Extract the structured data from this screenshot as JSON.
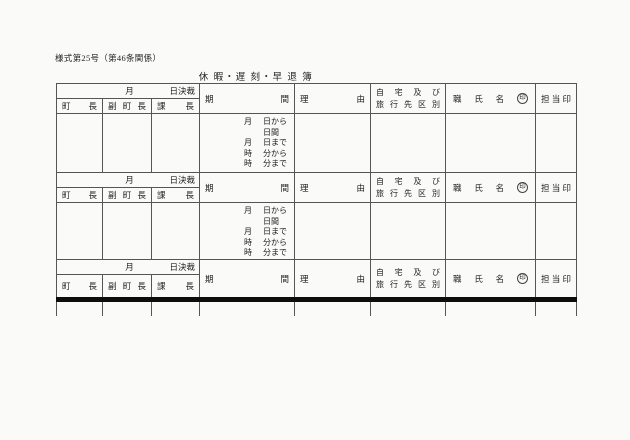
{
  "page": {
    "form_number": "様式第25号（第46条関係）",
    "title": "休 暇・遅 刻・早 退 簿"
  },
  "table": {
    "approval_month": "月",
    "approval_decide": "日決裁",
    "approvers": [
      [
        "町",
        "長"
      ],
      [
        "副",
        "町",
        "長"
      ],
      [
        "課",
        "長"
      ]
    ],
    "period": [
      "期",
      "間"
    ],
    "reason": [
      "理",
      "由"
    ],
    "residence": [
      [
        "自",
        "宅",
        "及",
        "び"
      ],
      [
        "旅",
        "行",
        "先",
        "区",
        "別"
      ]
    ],
    "name": [
      "職",
      "氏",
      "名"
    ],
    "name_seal": "印",
    "staff_seal": [
      "担",
      "当",
      "印"
    ],
    "period_lines": [
      {
        "unit": "月",
        "label": "日から"
      },
      {
        "unit": "",
        "label": "日間"
      },
      {
        "unit": "月",
        "label": "日まで"
      },
      {
        "unit": "時",
        "label": "分から"
      },
      {
        "unit": "時",
        "label": "分まで"
      }
    ]
  }
}
